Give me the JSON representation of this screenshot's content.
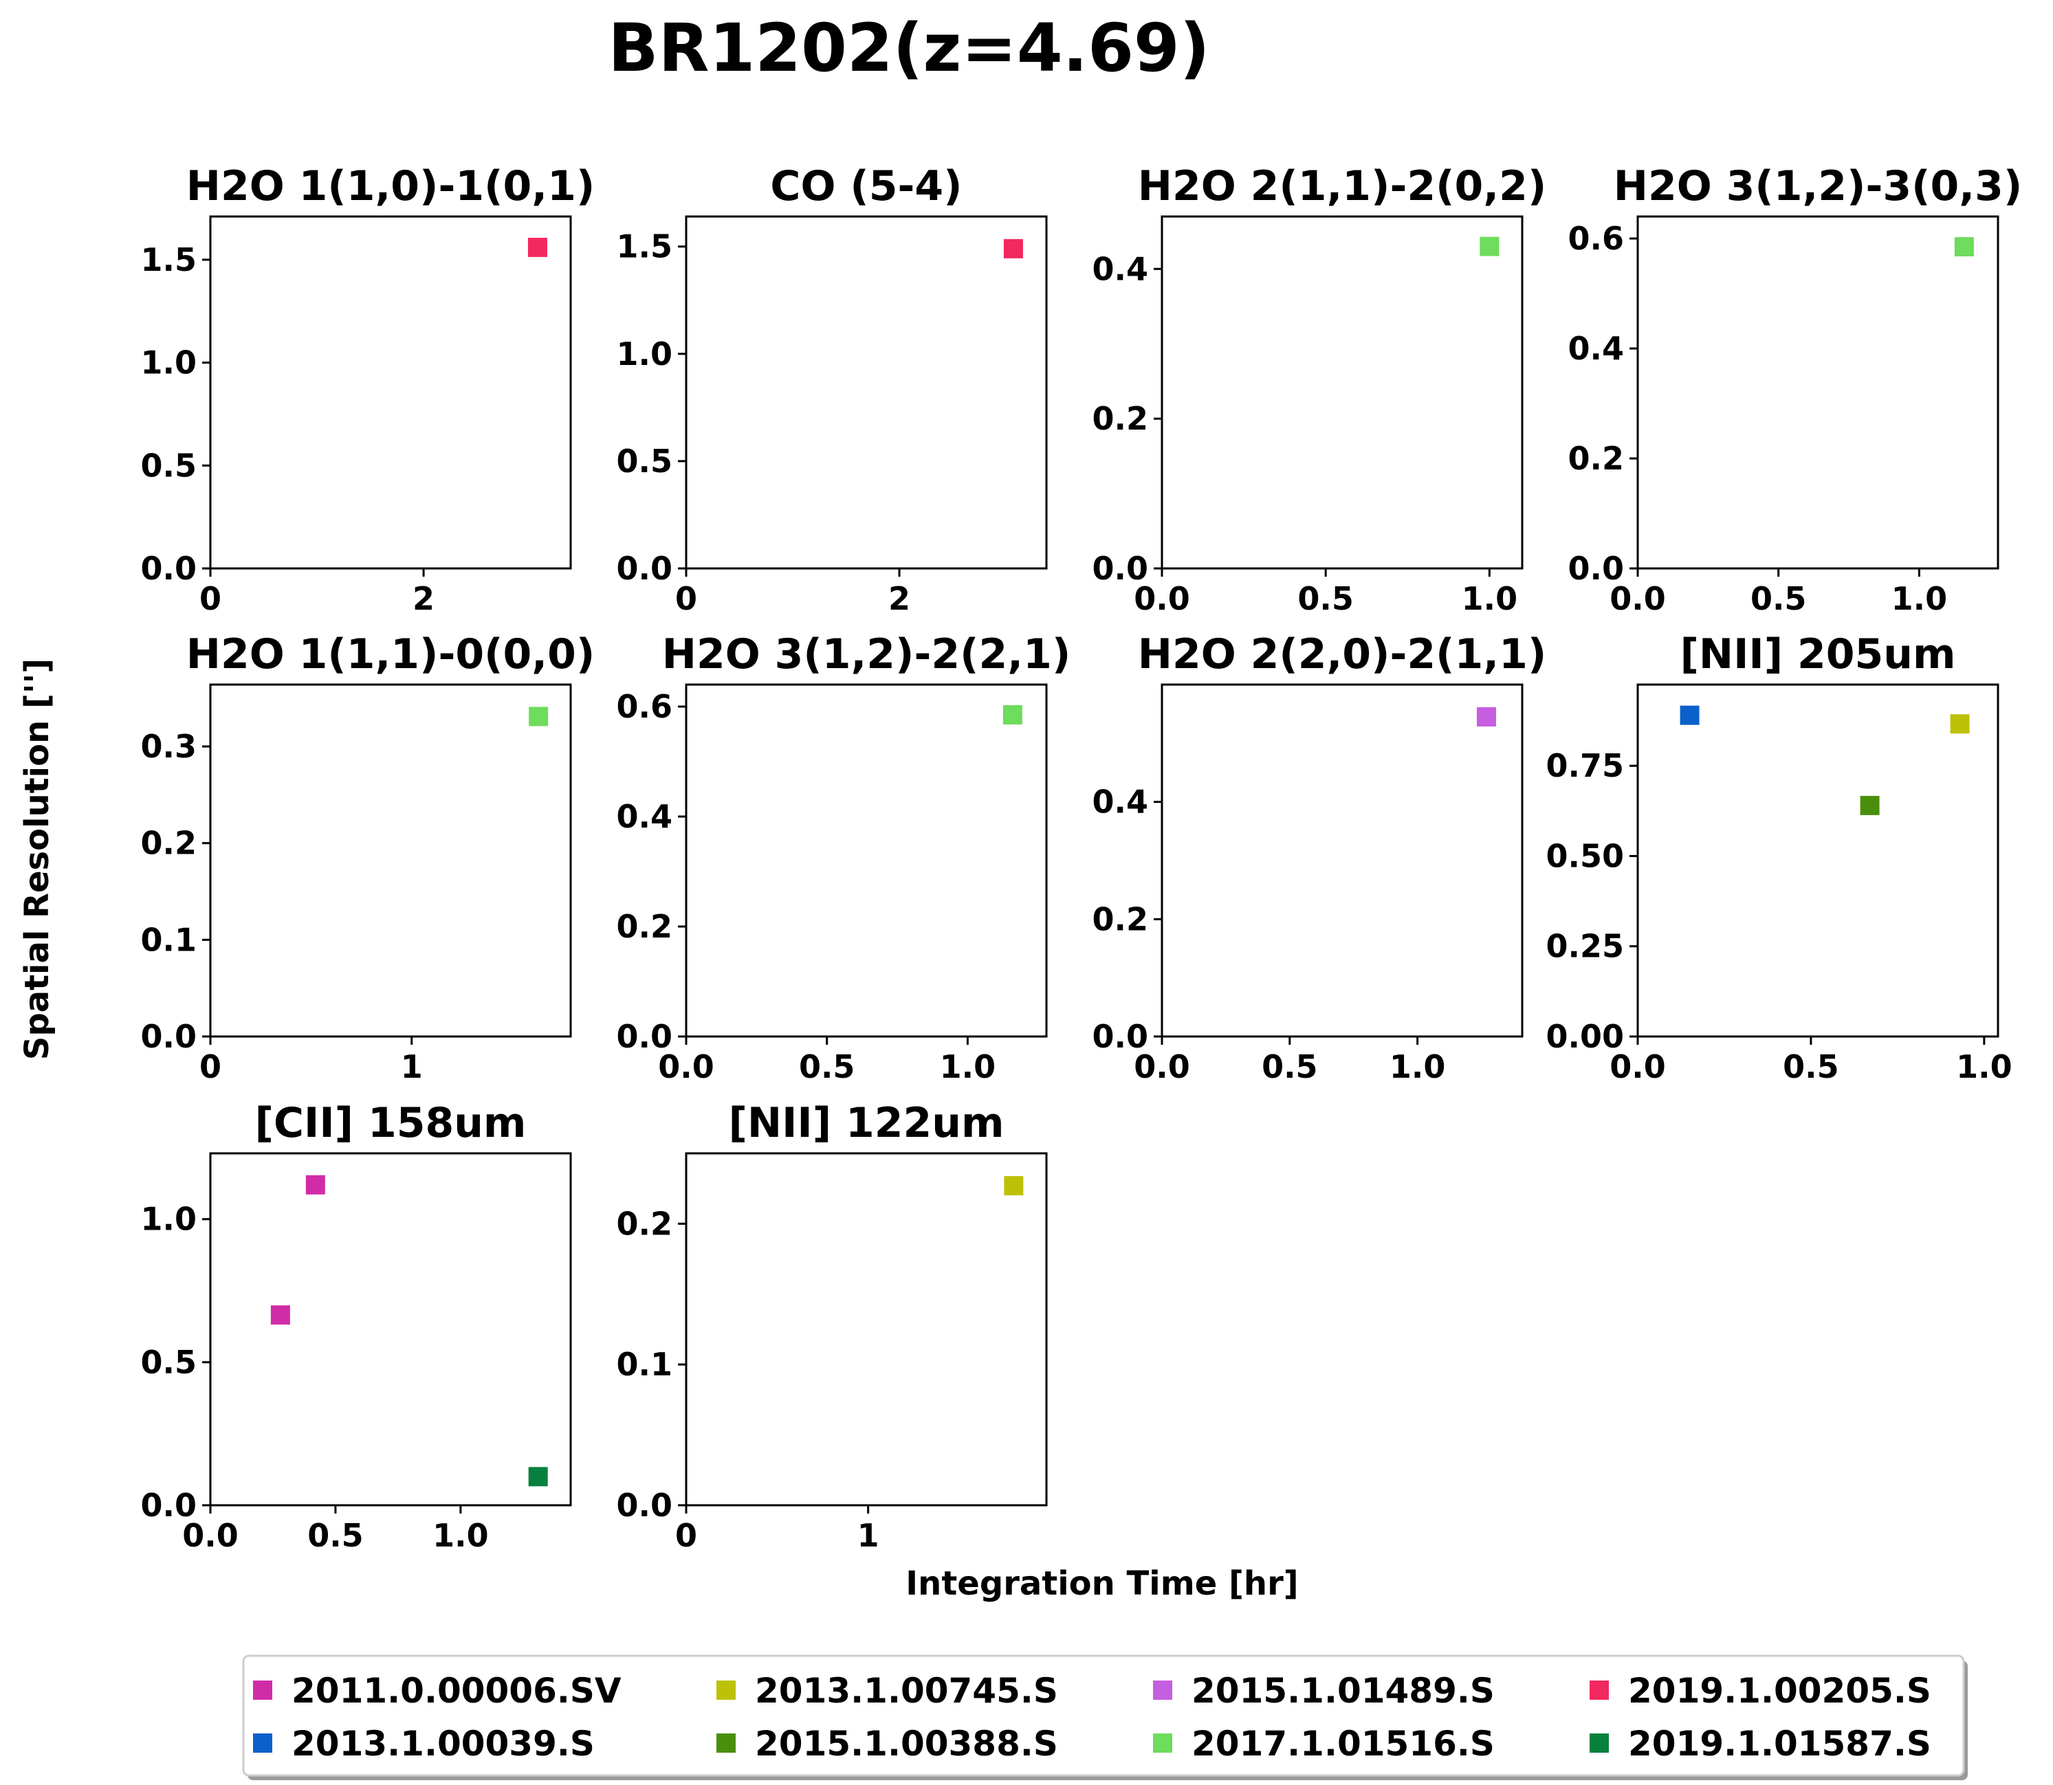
{
  "title": "BR1202(z=4.69)",
  "xlabel": "Integration Time [hr]",
  "ylabel": "Spatial Resolution ['']",
  "legend": {
    "placement": "bottom-center",
    "entries": [
      {
        "label": "2011.0.00006.SV",
        "color": "#d12ca8"
      },
      {
        "label": "2013.1.00039.S",
        "color": "#0b61c9"
      },
      {
        "label": "2013.1.00745.S",
        "color": "#bcc108"
      },
      {
        "label": "2015.1.00388.S",
        "color": "#4a8f0c"
      },
      {
        "label": "2015.1.01489.S",
        "color": "#c65ee0"
      },
      {
        "label": "2017.1.01516.S",
        "color": "#6edc5c"
      },
      {
        "label": "2019.1.00205.S",
        "color": "#f2295e"
      },
      {
        "label": "2019.1.01587.S",
        "color": "#07803e"
      }
    ]
  },
  "chart_data": [
    {
      "type": "scatter",
      "title": "H2O 1(1,0)-1(0,1)",
      "xlim": [
        0,
        3.38
      ],
      "ylim": [
        0,
        1.71
      ],
      "xticks": [
        {
          "v": 0,
          "label": "0"
        },
        {
          "v": 2,
          "label": "2"
        }
      ],
      "yticks": [
        {
          "v": 0,
          "label": "0.0"
        },
        {
          "v": 0.5,
          "label": "0.5"
        },
        {
          "v": 1.0,
          "label": "1.0"
        },
        {
          "v": 1.5,
          "label": "1.5"
        }
      ],
      "points": [
        {
          "x": 3.07,
          "y": 1.56,
          "project": "2019.1.00205.S",
          "color": "#f2295e"
        }
      ]
    },
    {
      "type": "scatter",
      "title": "CO (5-4)",
      "xlim": [
        0,
        3.38
      ],
      "ylim": [
        0,
        1.64
      ],
      "xticks": [
        {
          "v": 0,
          "label": "0"
        },
        {
          "v": 2,
          "label": "2"
        }
      ],
      "yticks": [
        {
          "v": 0,
          "label": "0.0"
        },
        {
          "v": 0.5,
          "label": "0.5"
        },
        {
          "v": 1.0,
          "label": "1.0"
        },
        {
          "v": 1.5,
          "label": "1.5"
        }
      ],
      "points": [
        {
          "x": 3.07,
          "y": 1.49,
          "project": "2019.1.00205.S",
          "color": "#f2295e"
        }
      ]
    },
    {
      "type": "scatter",
      "title": "H2O 2(1,1)-2(0,2)",
      "xlim": [
        0,
        1.1
      ],
      "ylim": [
        0,
        0.47
      ],
      "xticks": [
        {
          "v": 0,
          "label": "0.0"
        },
        {
          "v": 0.5,
          "label": "0.5"
        },
        {
          "v": 1.0,
          "label": "1.0"
        }
      ],
      "yticks": [
        {
          "v": 0,
          "label": "0.0"
        },
        {
          "v": 0.2,
          "label": "0.2"
        },
        {
          "v": 0.4,
          "label": "0.4"
        }
      ],
      "points": [
        {
          "x": 1.0,
          "y": 0.43,
          "project": "2017.1.01516.S",
          "color": "#6edc5c"
        }
      ]
    },
    {
      "type": "scatter",
      "title": "H2O 3(1,2)-3(0,3)",
      "xlim": [
        0,
        1.28
      ],
      "ylim": [
        0,
        0.64
      ],
      "xticks": [
        {
          "v": 0,
          "label": "0.0"
        },
        {
          "v": 0.5,
          "label": "0.5"
        },
        {
          "v": 1.0,
          "label": "1.0"
        }
      ],
      "yticks": [
        {
          "v": 0,
          "label": "0.0"
        },
        {
          "v": 0.2,
          "label": "0.2"
        },
        {
          "v": 0.4,
          "label": "0.4"
        },
        {
          "v": 0.6,
          "label": "0.6"
        }
      ],
      "points": [
        {
          "x": 1.16,
          "y": 0.585,
          "project": "2017.1.01516.S",
          "color": "#6edc5c"
        }
      ]
    },
    {
      "type": "scatter",
      "title": "H2O 1(1,1)-0(0,0)",
      "xlim": [
        0,
        1.79
      ],
      "ylim": [
        0,
        0.364
      ],
      "xticks": [
        {
          "v": 0,
          "label": "0"
        },
        {
          "v": 1,
          "label": "1"
        }
      ],
      "yticks": [
        {
          "v": 0,
          "label": "0.0"
        },
        {
          "v": 0.1,
          "label": "0.1"
        },
        {
          "v": 0.2,
          "label": "0.2"
        },
        {
          "v": 0.3,
          "label": "0.3"
        }
      ],
      "points": [
        {
          "x": 1.63,
          "y": 0.331,
          "project": "2017.1.01516.S",
          "color": "#6edc5c"
        }
      ]
    },
    {
      "type": "scatter",
      "title": "H2O 3(1,2)-2(2,1)",
      "xlim": [
        0,
        1.28
      ],
      "ylim": [
        0,
        0.64
      ],
      "xticks": [
        {
          "v": 0,
          "label": "0.0"
        },
        {
          "v": 0.5,
          "label": "0.5"
        },
        {
          "v": 1.0,
          "label": "1.0"
        }
      ],
      "yticks": [
        {
          "v": 0,
          "label": "0.0"
        },
        {
          "v": 0.2,
          "label": "0.2"
        },
        {
          "v": 0.4,
          "label": "0.4"
        },
        {
          "v": 0.6,
          "label": "0.6"
        }
      ],
      "points": [
        {
          "x": 1.16,
          "y": 0.585,
          "project": "2017.1.01516.S",
          "color": "#6edc5c"
        }
      ]
    },
    {
      "type": "scatter",
      "title": "H2O 2(2,0)-2(1,1)",
      "xlim": [
        0,
        1.41
      ],
      "ylim": [
        0,
        0.6
      ],
      "xticks": [
        {
          "v": 0,
          "label": "0.0"
        },
        {
          "v": 0.5,
          "label": "0.5"
        },
        {
          "v": 1.0,
          "label": "1.0"
        }
      ],
      "yticks": [
        {
          "v": 0,
          "label": "0.0"
        },
        {
          "v": 0.2,
          "label": "0.2"
        },
        {
          "v": 0.4,
          "label": "0.4"
        }
      ],
      "points": [
        {
          "x": 1.27,
          "y": 0.545,
          "project": "2015.1.01489.S",
          "color": "#c65ee0"
        }
      ]
    },
    {
      "type": "scatter",
      "title": "[NII] 205um",
      "xlim": [
        0,
        1.04
      ],
      "ylim": [
        0,
        0.975
      ],
      "xticks": [
        {
          "v": 0,
          "label": "0.0"
        },
        {
          "v": 0.5,
          "label": "0.5"
        },
        {
          "v": 1.0,
          "label": "1.0"
        }
      ],
      "yticks": [
        {
          "v": 0,
          "label": "0.00"
        },
        {
          "v": 0.25,
          "label": "0.25"
        },
        {
          "v": 0.5,
          "label": "0.50"
        },
        {
          "v": 0.75,
          "label": "0.75"
        }
      ],
      "points": [
        {
          "x": 0.15,
          "y": 0.89,
          "project": "2013.1.00039.S",
          "color": "#0b61c9"
        },
        {
          "x": 0.93,
          "y": 0.866,
          "project": "2013.1.00745.S",
          "color": "#bcc108"
        },
        {
          "x": 0.67,
          "y": 0.64,
          "project": "2015.1.00388.S",
          "color": "#4a8f0c"
        }
      ]
    },
    {
      "type": "scatter",
      "title": "[CII] 158um",
      "xlim": [
        0,
        1.44
      ],
      "ylim": [
        0,
        1.23
      ],
      "xticks": [
        {
          "v": 0,
          "label": "0.0"
        },
        {
          "v": 0.5,
          "label": "0.5"
        },
        {
          "v": 1.0,
          "label": "1.0"
        }
      ],
      "yticks": [
        {
          "v": 0,
          "label": "0.0"
        },
        {
          "v": 0.5,
          "label": "0.5"
        },
        {
          "v": 1.0,
          "label": "1.0"
        }
      ],
      "points": [
        {
          "x": 0.42,
          "y": 1.12,
          "project": "2011.0.00006.SV",
          "color": "#d12ca8"
        },
        {
          "x": 0.28,
          "y": 0.665,
          "project": "2011.0.00006.SV",
          "color": "#d12ca8"
        },
        {
          "x": 1.31,
          "y": 0.1,
          "project": "2019.1.01587.S",
          "color": "#07803e"
        }
      ]
    },
    {
      "type": "scatter",
      "title": "[NII] 122um",
      "xlim": [
        0,
        1.98
      ],
      "ylim": [
        0,
        0.25
      ],
      "xticks": [
        {
          "v": 0,
          "label": "0"
        },
        {
          "v": 1,
          "label": "1"
        }
      ],
      "yticks": [
        {
          "v": 0,
          "label": "0.0"
        },
        {
          "v": 0.1,
          "label": "0.1"
        },
        {
          "v": 0.2,
          "label": "0.2"
        }
      ],
      "points": [
        {
          "x": 1.8,
          "y": 0.227,
          "project": "2013.1.00745.S",
          "color": "#bcc108"
        }
      ]
    }
  ]
}
